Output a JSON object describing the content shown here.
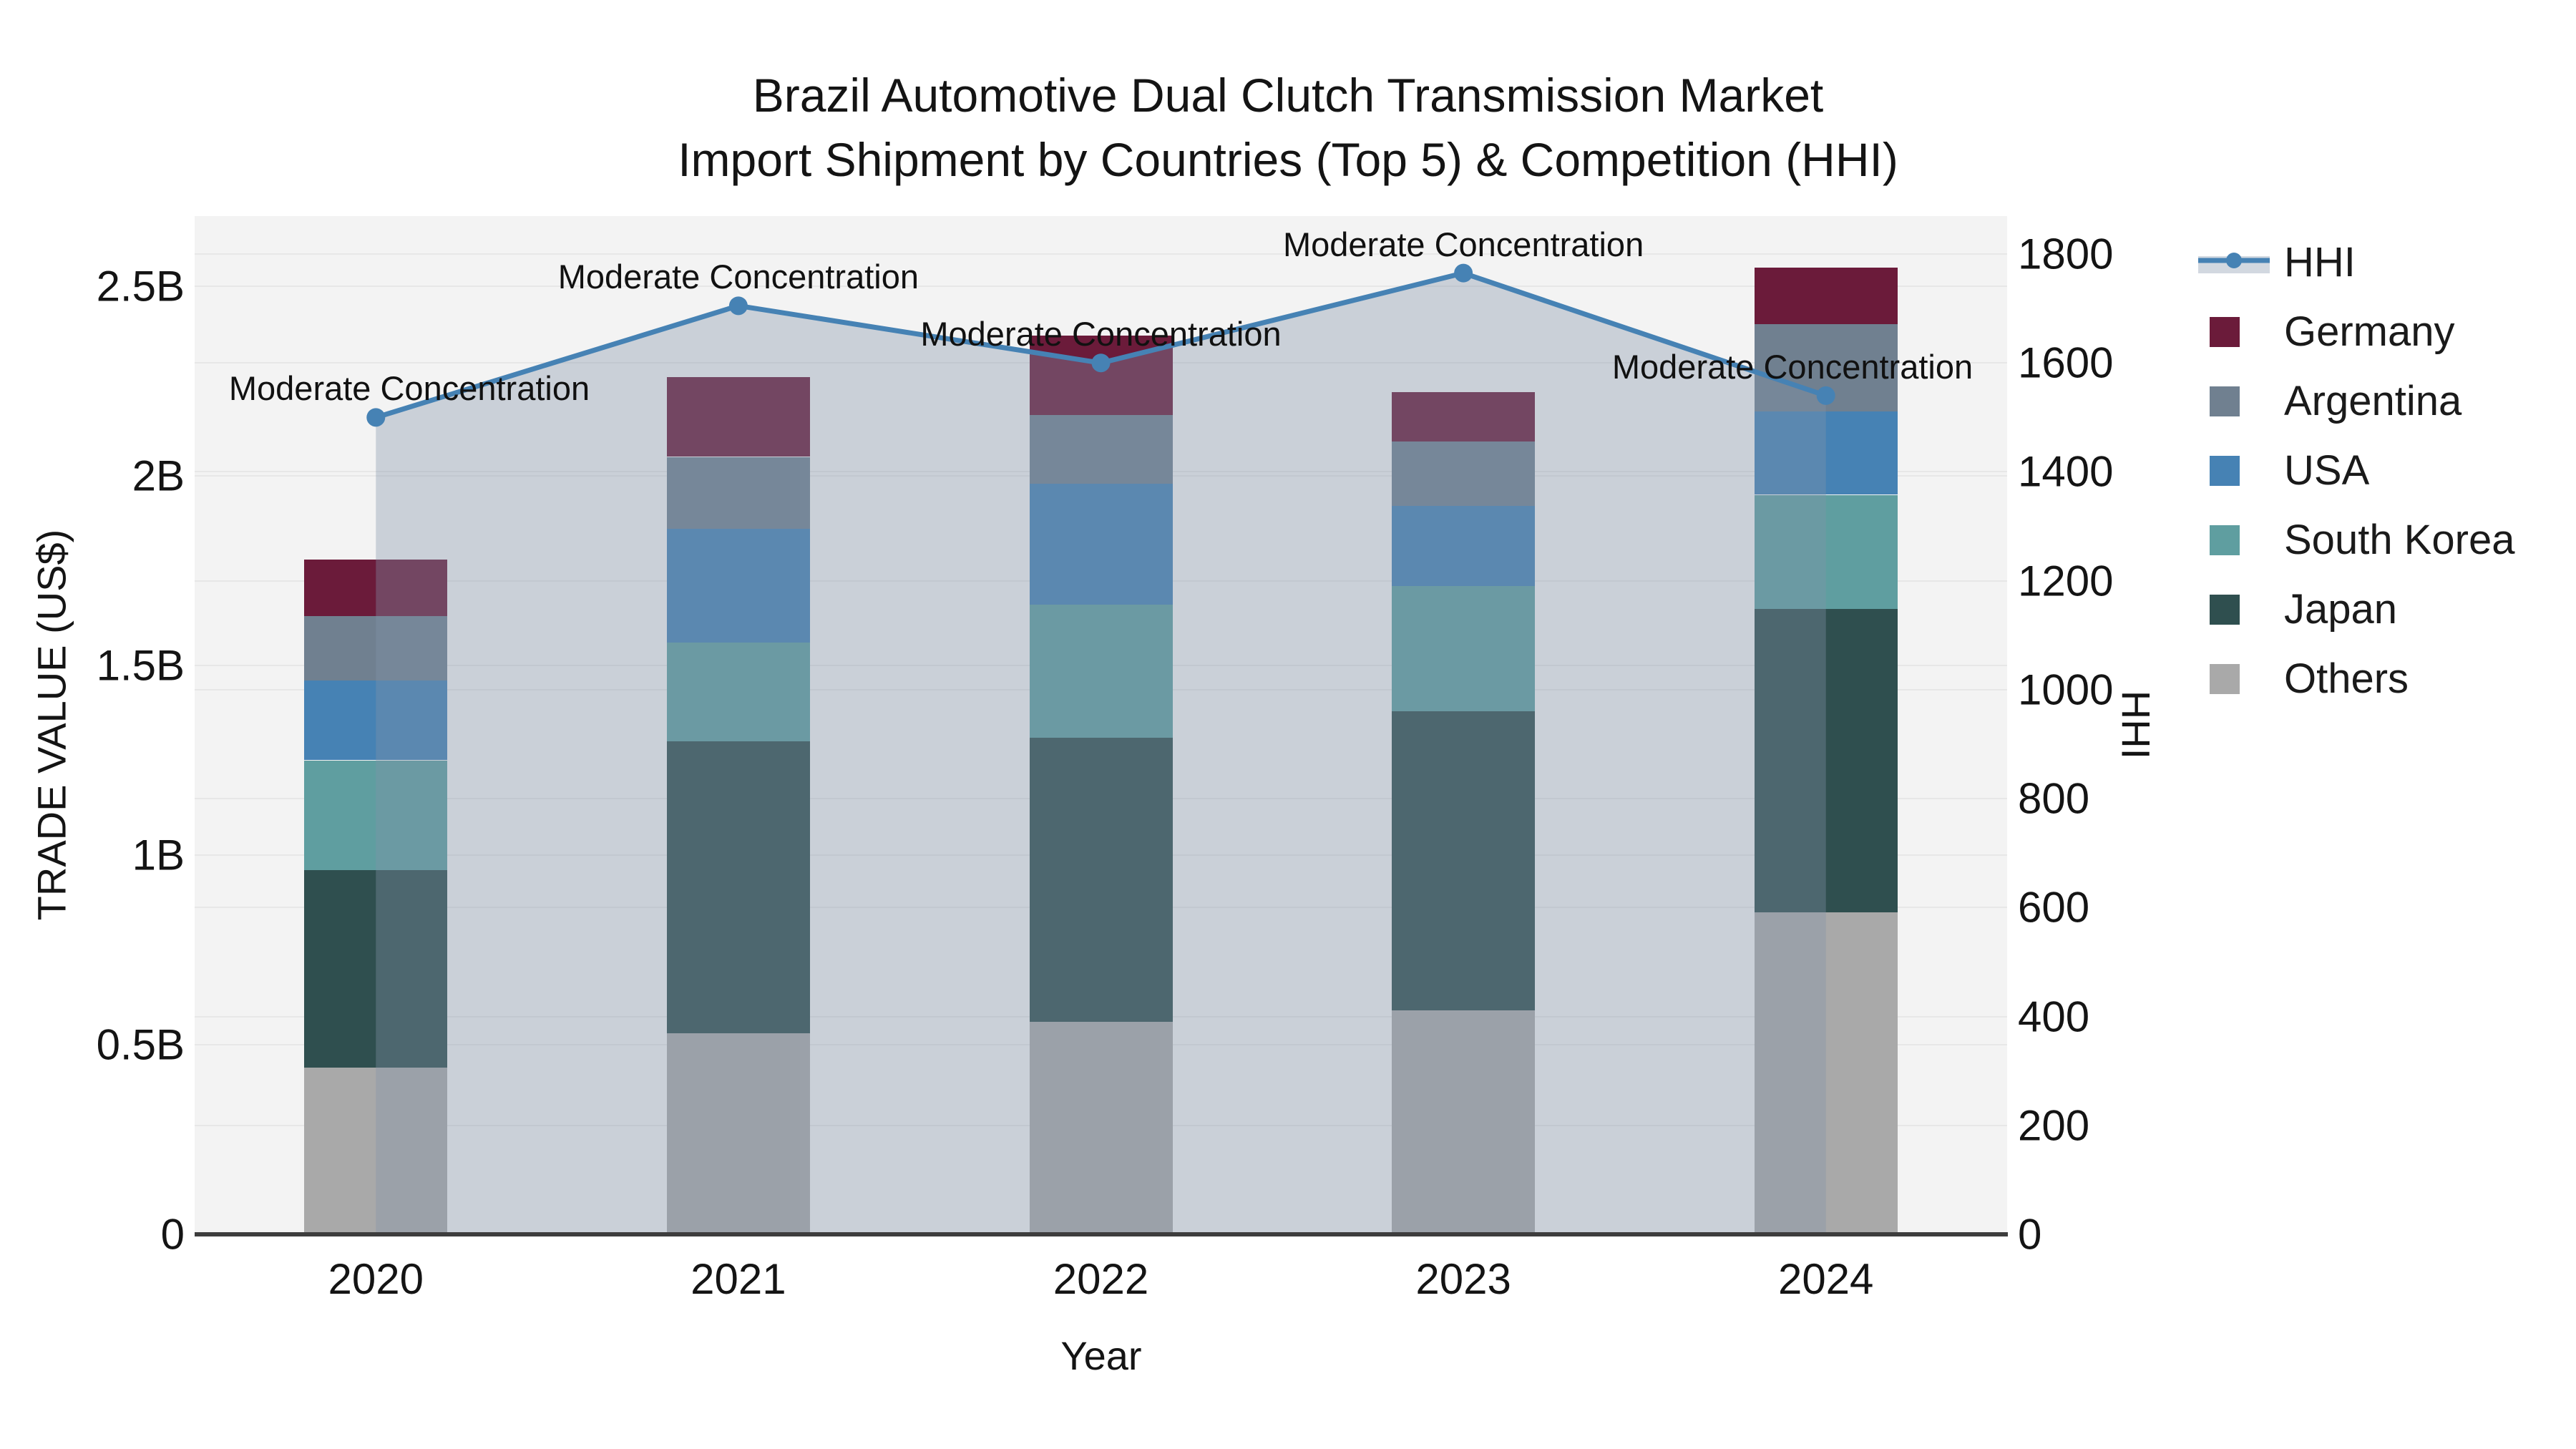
{
  "title": {
    "line1": "Brazil Automotive Dual Clutch Transmission Market",
    "line2": "Import Shipment by Countries (Top 5) & Competition (HHI)"
  },
  "axes": {
    "left": {
      "title": "TRADE VALUE (US$)",
      "ticks": [
        "0",
        "0.5B",
        "1B",
        "1.5B",
        "2B",
        "2.5B"
      ],
      "tick_values": [
        0,
        0.5,
        1,
        1.5,
        2,
        2.5
      ],
      "range": [
        0,
        2.685
      ]
    },
    "right": {
      "title": "HHI",
      "ticks": [
        "0",
        "200",
        "400",
        "600",
        "800",
        "1000",
        "1200",
        "1400",
        "1600",
        "1800"
      ],
      "tick_values": [
        0,
        200,
        400,
        600,
        800,
        1000,
        1200,
        1400,
        1600,
        1800
      ],
      "range": [
        0,
        1870
      ]
    },
    "x": {
      "title": "Year",
      "categories": [
        "2020",
        "2021",
        "2022",
        "2023",
        "2024"
      ]
    }
  },
  "chart_data": {
    "type": "bar",
    "subtype": "stacked-bar-with-line",
    "title": "Brazil Automotive Dual Clutch Transmission Market Import Shipment by Countries (Top 5) & Competition (HHI)",
    "xlabel": "Year",
    "ylabel": "TRADE VALUE (US$)",
    "y2label": "HHI",
    "categories": [
      "2020",
      "2021",
      "2022",
      "2023",
      "2024"
    ],
    "units": "billions USD",
    "ylim": [
      0,
      2.685
    ],
    "y2lim": [
      0,
      1870
    ],
    "grid": "on",
    "legend_position": "right",
    "series": [
      {
        "name": "Others",
        "values": [
          0.44,
          0.53,
          0.56,
          0.59,
          0.85
        ],
        "color": "#a9a9a9"
      },
      {
        "name": "Japan",
        "values": [
          0.52,
          0.77,
          0.75,
          0.79,
          0.8
        ],
        "color": "#2f4f4f"
      },
      {
        "name": "South Korea",
        "values": [
          0.29,
          0.26,
          0.35,
          0.33,
          0.3
        ],
        "color": "#5f9ea0"
      },
      {
        "name": "USA",
        "values": [
          0.21,
          0.3,
          0.32,
          0.21,
          0.22
        ],
        "color": "#4682b4"
      },
      {
        "name": "Argentina",
        "values": [
          0.17,
          0.19,
          0.18,
          0.17,
          0.23
        ],
        "color": "#708090"
      },
      {
        "name": "Germany",
        "values": [
          0.15,
          0.21,
          0.21,
          0.13,
          0.15
        ],
        "color": "#6b1b3a"
      }
    ],
    "totals": [
      1.78,
      2.26,
      2.37,
      2.22,
      2.55
    ],
    "line_series": {
      "name": "HHI",
      "values": [
        1500,
        1705,
        1600,
        1765,
        1540
      ],
      "color": "#4682b4",
      "fill_color": "rgba(130,148,168,0.36)",
      "axis": "right"
    },
    "annotations": [
      {
        "text": "Moderate Concentration",
        "category": "2020"
      },
      {
        "text": "Moderate Concentration",
        "category": "2021"
      },
      {
        "text": "Moderate Concentration",
        "category": "2022"
      },
      {
        "text": "Moderate Concentration",
        "category": "2023"
      },
      {
        "text": "Moderate Concentration",
        "category": "2024"
      }
    ]
  },
  "legend": {
    "items": [
      {
        "label": "HHI",
        "type": "line",
        "color": "#4682b4"
      },
      {
        "label": "Germany",
        "type": "swatch",
        "color": "#6b1b3a"
      },
      {
        "label": "Argentina",
        "type": "swatch",
        "color": "#708090"
      },
      {
        "label": "USA",
        "type": "swatch",
        "color": "#4682b4"
      },
      {
        "label": "South Korea",
        "type": "swatch",
        "color": "#5f9ea0"
      },
      {
        "label": "Japan",
        "type": "swatch",
        "color": "#2f4f4f"
      },
      {
        "label": "Others",
        "type": "swatch",
        "color": "#a9a9a9"
      }
    ]
  },
  "colors": {
    "plot_background": "#f3f3f3",
    "page_background": "#ffffff",
    "gridline": "#e7e7e7",
    "axis_line": "#3d3d3d",
    "text": "#141414",
    "accent_line": "#4682b4",
    "area_fill": "rgba(130,148,168,0.36)"
  }
}
